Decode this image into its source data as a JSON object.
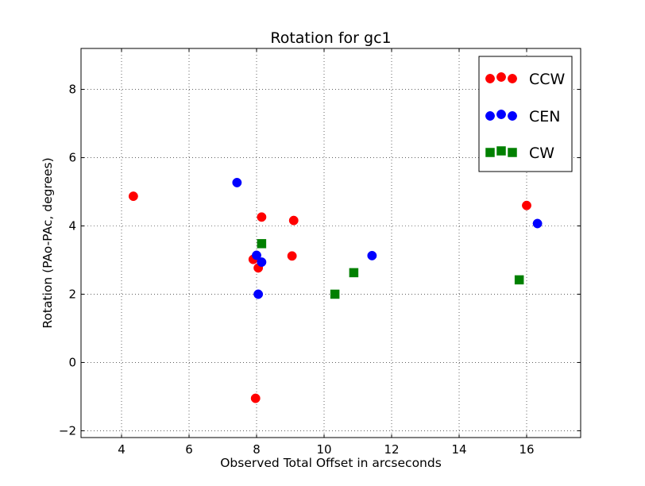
{
  "chart_data": {
    "type": "scatter",
    "title": "Rotation for gc1",
    "xlabel": "Observed Total Offset in arcseconds",
    "ylabel": "Rotation (PAo-PAc, degrees)",
    "xlim": [
      2.8,
      17.6
    ],
    "ylim": [
      -2.2,
      9.2
    ],
    "xticks": [
      4,
      6,
      8,
      10,
      12,
      14,
      16
    ],
    "yticks": [
      -2,
      0,
      2,
      4,
      6,
      8
    ],
    "xtick_labels": [
      "4",
      "6",
      "8",
      "10",
      "12",
      "14",
      "16"
    ],
    "ytick_labels": [
      "−2",
      "0",
      "2",
      "4",
      "6",
      "8"
    ],
    "grid": true,
    "legend_position": "top-right",
    "series": [
      {
        "name": "CCW",
        "marker": "circle",
        "color": "#ff0000",
        "points": [
          [
            4.35,
            4.87
          ],
          [
            7.9,
            3.02
          ],
          [
            8.05,
            2.77
          ],
          [
            8.15,
            4.26
          ],
          [
            7.97,
            -1.05
          ],
          [
            9.05,
            3.12
          ],
          [
            9.1,
            4.16
          ],
          [
            16.0,
            4.6
          ]
        ]
      },
      {
        "name": "CEN",
        "marker": "circle",
        "color": "#0000ff",
        "points": [
          [
            7.42,
            5.27
          ],
          [
            8.0,
            3.14
          ],
          [
            8.15,
            2.94
          ],
          [
            8.05,
            2.0
          ],
          [
            11.42,
            3.13
          ],
          [
            16.32,
            4.07
          ]
        ]
      },
      {
        "name": "CW",
        "marker": "square",
        "color": "#008000",
        "points": [
          [
            8.15,
            3.48
          ],
          [
            10.32,
            2.0
          ],
          [
            10.88,
            2.63
          ],
          [
            15.78,
            2.42
          ]
        ]
      }
    ]
  }
}
